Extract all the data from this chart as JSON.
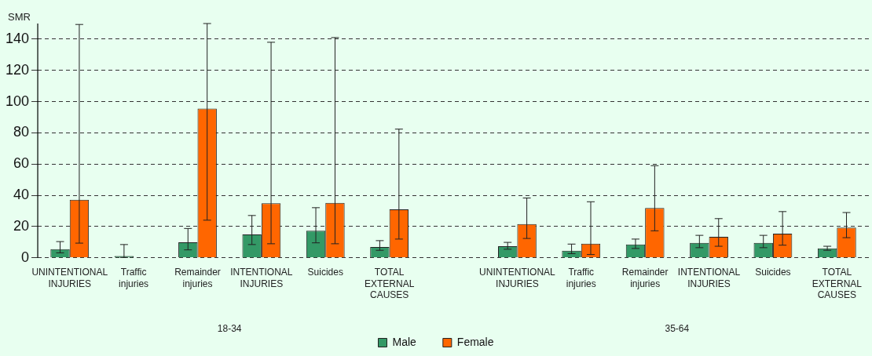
{
  "chart_data": {
    "type": "bar",
    "ylabel": "SMR",
    "categories": [
      "UNINTENTIONAL INJURIES",
      "Traffic injuries",
      "Remainder injuries",
      "INTENTIONAL INJURIES",
      "Suicides",
      "TOTAL EXTERNAL CAUSES",
      null,
      "UNINTENTIONAL INJURIES",
      "Traffic injuries",
      "Remainder injuries",
      "INTENTIONAL INJURIES",
      "Suicides",
      "TOTAL EXTERNAL CAUSES"
    ],
    "series": [
      {
        "name": "Male",
        "color": "#339966",
        "values": [
          5.5,
          1.1,
          9.9,
          14.9,
          17.3,
          6.9,
          null,
          7.4,
          4.6,
          8.5,
          9.6,
          9.6,
          6.0
        ],
        "errors": [
          [
            3.2,
            10.4
          ],
          [
            0.2,
            8.5
          ],
          [
            5.1,
            18.8
          ],
          [
            8.5,
            27.1
          ],
          [
            9.6,
            32.1
          ],
          [
            4.8,
            11.0
          ],
          null,
          [
            5.5,
            9.9
          ],
          [
            2.7,
            8.8
          ],
          [
            6.0,
            12.0
          ],
          [
            6.5,
            14.4
          ],
          [
            6.5,
            14.4
          ],
          [
            4.8,
            7.4
          ]
        ]
      },
      {
        "name": "Female",
        "color": "#ff6600",
        "values": [
          37.2,
          null,
          95.5,
          34.9,
          35.2,
          31.0,
          null,
          21.6,
          9.0,
          31.9,
          13.5,
          15.4,
          19.3
        ],
        "errors": [
          [
            9.4,
            149.4
          ],
          null,
          [
            24.1,
            150
          ],
          [
            9.0,
            138
          ],
          [
            9.0,
            141
          ],
          [
            12.0,
            82.4
          ],
          null,
          [
            12.4,
            38.3
          ],
          [
            2.1,
            35.9
          ],
          [
            17.3,
            59.0
          ],
          [
            7.4,
            25.1
          ],
          [
            8.1,
            29.6
          ],
          [
            12.9,
            29.0
          ]
        ]
      }
    ],
    "ylim": [
      0,
      150
    ],
    "yticks": [
      0,
      20,
      40,
      60,
      80,
      100,
      120,
      140
    ],
    "grid": "y",
    "line_style": "dashed",
    "legend": "bottom",
    "annotations": [
      "18-34",
      "35-64"
    ]
  }
}
